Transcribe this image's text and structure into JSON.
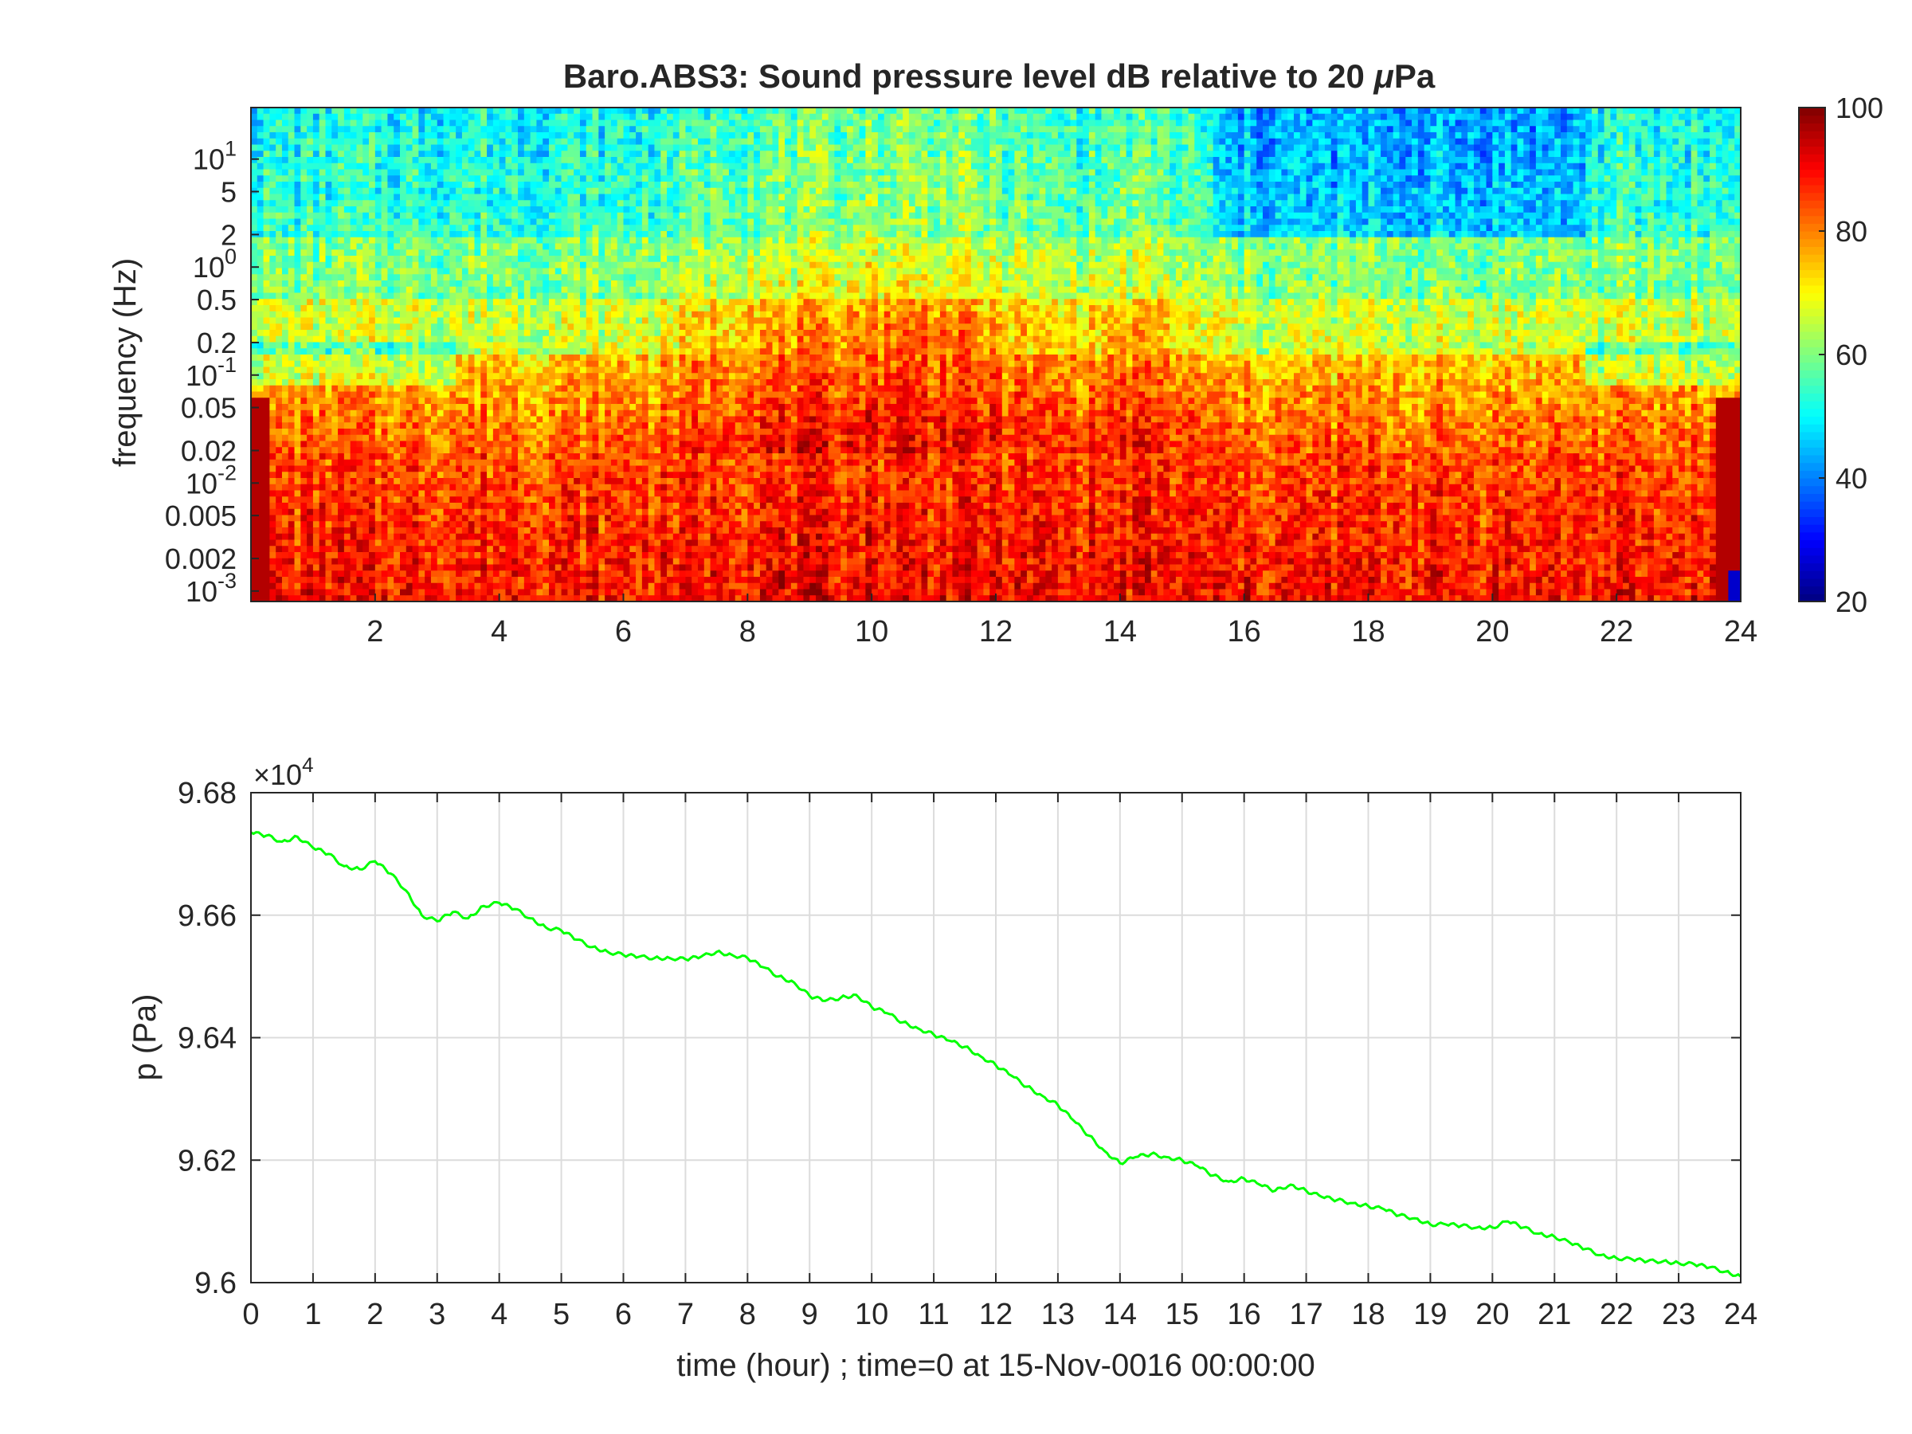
{
  "chart_data": [
    {
      "type": "heatmap",
      "title": "Baro.ABS3: Sound pressure level dB relative to 20 μPa",
      "title_main": "Baro.ABS3: Sound pressure level dB relative to 20 ",
      "title_mu": "μ",
      "title_tail": "Pa",
      "xlabel": "",
      "ylabel": "frequency (Hz)",
      "xlim": [
        0,
        24
      ],
      "ylim": [
        0.0008,
        30
      ],
      "yscale": "log",
      "xticks": [
        2,
        4,
        6,
        8,
        10,
        12,
        14,
        16,
        18,
        20,
        22,
        24
      ],
      "xtick_labels": [
        "2",
        "4",
        "6",
        "8",
        "10",
        "12",
        "14",
        "16",
        "18",
        "20",
        "22",
        "24"
      ],
      "yticks": [
        {
          "value": 0.001,
          "base": "10",
          "exp": "-3"
        },
        {
          "value": 0.002,
          "label": "0.002"
        },
        {
          "value": 0.005,
          "label": "0.005"
        },
        {
          "value": 0.01,
          "base": "10",
          "exp": "-2"
        },
        {
          "value": 0.02,
          "label": "0.02"
        },
        {
          "value": 0.05,
          "label": "0.05"
        },
        {
          "value": 0.1,
          "base": "10",
          "exp": "-1"
        },
        {
          "value": 0.2,
          "label": "0.2"
        },
        {
          "value": 0.5,
          "label": "0.5"
        },
        {
          "value": 1,
          "base": "10",
          "exp": "0"
        },
        {
          "value": 2,
          "label": "2"
        },
        {
          "value": 5,
          "label": "5"
        },
        {
          "value": 10,
          "base": "10",
          "exp": "1"
        }
      ],
      "colorbar": {
        "colormap": "jet",
        "limits": [
          20,
          100
        ],
        "ticks": [
          20,
          40,
          60,
          80,
          100
        ],
        "tick_labels": [
          "20",
          "40",
          "60",
          "80",
          "100"
        ]
      },
      "grid": false
    },
    {
      "type": "line",
      "title": "",
      "xlabel": "time (hour) ; time=0 at 15-Nov-0016 00:00:00",
      "ylabel": "p (Pa)",
      "xlim": [
        0,
        24
      ],
      "ylim": [
        96000,
        96800
      ],
      "y_exponent_base": "×10",
      "y_exponent_power": "4",
      "xticks": [
        0,
        1,
        2,
        3,
        4,
        5,
        6,
        7,
        8,
        9,
        10,
        11,
        12,
        13,
        14,
        15,
        16,
        17,
        18,
        19,
        20,
        21,
        22,
        23,
        24
      ],
      "xtick_labels": [
        "0",
        "1",
        "2",
        "3",
        "4",
        "5",
        "6",
        "7",
        "8",
        "9",
        "10",
        "11",
        "12",
        "13",
        "14",
        "15",
        "16",
        "17",
        "18",
        "19",
        "20",
        "21",
        "22",
        "23",
        "24"
      ],
      "yticks": [
        96000,
        96200,
        96400,
        96600,
        96800
      ],
      "ytick_labels": [
        "9.6",
        "9.62",
        "9.64",
        "9.66",
        "9.68"
      ],
      "grid": true,
      "series": [
        {
          "color": "#00ff00",
          "x": [
            0,
            0.25,
            0.5,
            0.75,
            1.0,
            1.25,
            1.5,
            1.75,
            2.0,
            2.25,
            2.5,
            2.75,
            3.0,
            3.25,
            3.5,
            3.75,
            4.0,
            4.25,
            4.5,
            4.75,
            5.0,
            5.25,
            5.5,
            5.75,
            6.0,
            6.25,
            6.5,
            6.75,
            7.0,
            7.25,
            7.5,
            7.75,
            8.0,
            8.25,
            8.5,
            8.75,
            9.0,
            9.25,
            9.5,
            9.75,
            10.0,
            10.25,
            10.5,
            10.75,
            11.0,
            11.25,
            11.5,
            11.75,
            12.0,
            12.25,
            12.5,
            12.75,
            13.0,
            13.25,
            13.5,
            13.75,
            14.0,
            14.25,
            14.5,
            14.75,
            15.0,
            15.25,
            15.5,
            15.75,
            16.0,
            16.25,
            16.5,
            16.75,
            17.0,
            17.25,
            17.5,
            17.75,
            18.0,
            18.25,
            18.5,
            18.75,
            19.0,
            19.25,
            19.5,
            19.75,
            20.0,
            20.25,
            20.5,
            20.75,
            21.0,
            21.25,
            21.5,
            21.75,
            22.0,
            22.25,
            22.5,
            22.75,
            23.0,
            23.25,
            23.5,
            23.75,
            24.0
          ],
          "y": [
            96735,
            96730,
            96720,
            96728,
            96710,
            96700,
            96680,
            96675,
            96688,
            96668,
            96640,
            96600,
            96590,
            96605,
            96595,
            96615,
            96620,
            96610,
            96595,
            96580,
            96575,
            96560,
            96548,
            96540,
            96535,
            96532,
            96530,
            96530,
            96528,
            96532,
            96540,
            96535,
            96530,
            96515,
            96500,
            96490,
            96468,
            96460,
            96465,
            96470,
            96450,
            96440,
            96425,
            96415,
            96405,
            96395,
            96385,
            96370,
            96355,
            96338,
            96320,
            96305,
            96290,
            96265,
            96240,
            96215,
            96195,
            96205,
            96210,
            96205,
            96200,
            96190,
            96175,
            96165,
            96170,
            96160,
            96150,
            96160,
            96150,
            96140,
            96135,
            96130,
            96125,
            96120,
            96110,
            96105,
            96095,
            96095,
            96093,
            96090,
            96090,
            96100,
            96090,
            96080,
            96075,
            96065,
            96055,
            96045,
            96040,
            96038,
            96035,
            96035,
            96032,
            96030,
            96025,
            96018,
            96010
          ]
        }
      ]
    }
  ]
}
